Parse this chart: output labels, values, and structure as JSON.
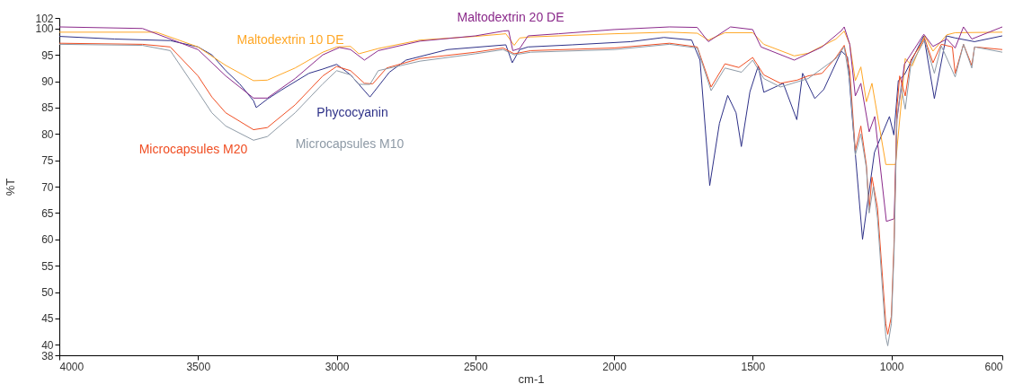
{
  "chart_data": {
    "type": "line",
    "xlabel": "cm-1",
    "ylabel": "%T",
    "xlim": [
      4000,
      600
    ],
    "xticks": [
      4000,
      3500,
      3000,
      2500,
      2000,
      1500,
      1000,
      600
    ],
    "ylim": [
      38,
      102
    ],
    "yticks": [
      38,
      40,
      45,
      50,
      55,
      60,
      65,
      70,
      75,
      80,
      85,
      90,
      95,
      100,
      102
    ],
    "series": [
      {
        "name": "Phycocyanin",
        "color": "#2e3188",
        "x": [
          4000,
          3800,
          3600,
          3500,
          3450,
          3400,
          3350,
          3300,
          3290,
          3250,
          3200,
          3100,
          3050,
          3000,
          2950,
          2880,
          2810,
          2750,
          2600,
          2390,
          2367,
          2340,
          2310,
          2150,
          1940,
          1820,
          1720,
          1690,
          1655,
          1620,
          1590,
          1560,
          1541,
          1510,
          1480,
          1460,
          1390,
          1341,
          1320,
          1276,
          1244,
          1180,
          1158,
          1142,
          1104,
          1061,
          1007,
          991,
          975,
          953,
          883,
          845,
          802,
          770,
          700,
          600
        ],
        "values": [
          98.5,
          98,
          97.7,
          96.5,
          95,
          92,
          89.5,
          86.3,
          85,
          86.6,
          88.3,
          91.5,
          92.3,
          93.2,
          91.2,
          87,
          91.7,
          94,
          96,
          96.9,
          93.5,
          96,
          96.5,
          96.9,
          97.5,
          98.3,
          97.8,
          94,
          70.2,
          82,
          87.3,
          84,
          77.6,
          88,
          92.9,
          87.9,
          89.6,
          82.7,
          91.5,
          86.7,
          88.4,
          95.7,
          94.6,
          83.8,
          60,
          76.5,
          83.3,
          79.8,
          90.1,
          91.2,
          98.6,
          86.7,
          98.6,
          98.2,
          97.5,
          98.6
        ]
      },
      {
        "name": "Maltodextrin 10 DE",
        "color": "#ffa726",
        "x": [
          4000,
          3650,
          3500,
          3400,
          3300,
          3250,
          3150,
          3050,
          3000,
          2950,
          2920,
          2850,
          2700,
          2500,
          2390,
          2360,
          2340,
          2300,
          2000,
          1800,
          1700,
          1660,
          1600,
          1500,
          1460,
          1350,
          1300,
          1200,
          1170,
          1150,
          1130,
          1110,
          1090,
          1070,
          1020,
          985,
          960,
          950,
          925,
          880,
          850,
          800,
          770,
          600
        ],
        "values": [
          99.3,
          99.3,
          96.5,
          93,
          90.1,
          90.2,
          92.5,
          95.5,
          96.5,
          96.6,
          95.2,
          96.2,
          97.8,
          98.5,
          99,
          96.8,
          98.2,
          98.4,
          99,
          99.3,
          99.1,
          97.8,
          99.2,
          99.2,
          97,
          94.8,
          95.3,
          98,
          99.5,
          97,
          90.1,
          92.7,
          86.1,
          89.6,
          74.2,
          74.2,
          88.4,
          94.3,
          92.9,
          98.6,
          95.7,
          98.8,
          99.2,
          99.3
        ]
      },
      {
        "name": "Maltodextrin 20 DE",
        "color": "#8b2a8b",
        "x": [
          4000,
          3700,
          3500,
          3400,
          3300,
          3250,
          3150,
          3050,
          2990,
          2950,
          2900,
          2850,
          2700,
          2500,
          2400,
          2380,
          2365,
          2340,
          2310,
          2200,
          2000,
          1800,
          1700,
          1660,
          1580,
          1500,
          1470,
          1350,
          1250,
          1180,
          1170,
          1150,
          1130,
          1110,
          1080,
          1060,
          1018,
          990,
          980,
          953,
          883,
          850,
          800,
          770,
          740,
          710,
          600
        ],
        "values": [
          100.3,
          100,
          96,
          91,
          86.8,
          86.8,
          90.5,
          95,
          96.4,
          96,
          94,
          95.8,
          97.6,
          98.6,
          99.5,
          99.6,
          95.8,
          96.2,
          98.6,
          99,
          99.8,
          100.3,
          100.2,
          97.5,
          100.3,
          99.8,
          96.5,
          94,
          96.5,
          99.6,
          100.3,
          97,
          87.2,
          89.6,
          80.4,
          83.3,
          63.4,
          63.9,
          82.7,
          93.2,
          98.9,
          96.6,
          98,
          96.3,
          100.3,
          98,
          100.3
        ]
      },
      {
        "name": "Microcapsules M20",
        "color": "#f04e23",
        "x": [
          4000,
          3700,
          3600,
          3500,
          3450,
          3400,
          3300,
          3250,
          3150,
          3050,
          3000,
          2950,
          2900,
          2870,
          2820,
          2700,
          2500,
          2400,
          2360,
          2300,
          2000,
          1800,
          1700,
          1650,
          1600,
          1550,
          1500,
          1460,
          1400,
          1340,
          1300,
          1250,
          1200,
          1170,
          1150,
          1130,
          1110,
          1090,
          1080,
          1070,
          1050,
          1020,
          1013,
          1000,
          990,
          980,
          970,
          950,
          930,
          880,
          850,
          820,
          780,
          770,
          740,
          710,
          700,
          600
        ],
        "values": [
          97.2,
          97,
          96.5,
          91,
          87,
          84,
          80.8,
          81.2,
          85.5,
          91,
          92.8,
          92,
          89.6,
          89.5,
          92.5,
          94.3,
          95.5,
          96.3,
          95.2,
          95.8,
          96.3,
          97.2,
          96.5,
          88.9,
          93.3,
          92.6,
          94.5,
          91.2,
          89.6,
          90.2,
          91,
          91.5,
          94.5,
          96.8,
          92,
          76.8,
          81.5,
          74,
          65.6,
          71.8,
          66,
          44,
          42,
          45.4,
          60,
          85,
          91,
          87.2,
          94,
          98.1,
          93.5,
          97,
          96.5,
          91.5,
          97,
          93,
          96.5,
          96
        ]
      },
      {
        "name": "Microcapsules M10",
        "color": "#8e9aa6",
        "x": [
          4000,
          3700,
          3600,
          3500,
          3450,
          3400,
          3300,
          3250,
          3150,
          3050,
          3000,
          2950,
          2920,
          2880,
          2850,
          2700,
          2500,
          2400,
          2360,
          2300,
          2000,
          1800,
          1700,
          1650,
          1600,
          1540,
          1500,
          1460,
          1400,
          1300,
          1200,
          1170,
          1150,
          1130,
          1110,
          1090,
          1080,
          1065,
          1050,
          1020,
          1013,
          1000,
          990,
          980,
          965,
          950,
          930,
          880,
          845,
          820,
          770,
          740,
          710,
          700,
          600
        ],
        "values": [
          97,
          96.8,
          95.8,
          88,
          84,
          81.5,
          78.8,
          79.5,
          84,
          89.5,
          92,
          91.2,
          89.4,
          89.4,
          92,
          93.8,
          95.2,
          96,
          95,
          95.5,
          96,
          97,
          96.3,
          88.2,
          92.5,
          91.7,
          94,
          90.5,
          88.9,
          90.5,
          94.3,
          96.5,
          90,
          76,
          80,
          73.5,
          65,
          70,
          64,
          41.5,
          39.8,
          44,
          58,
          83,
          89,
          84.7,
          93,
          97.8,
          91.5,
          96.7,
          90.8,
          97,
          92.5,
          96.5,
          95.5
        ]
      }
    ]
  }
}
